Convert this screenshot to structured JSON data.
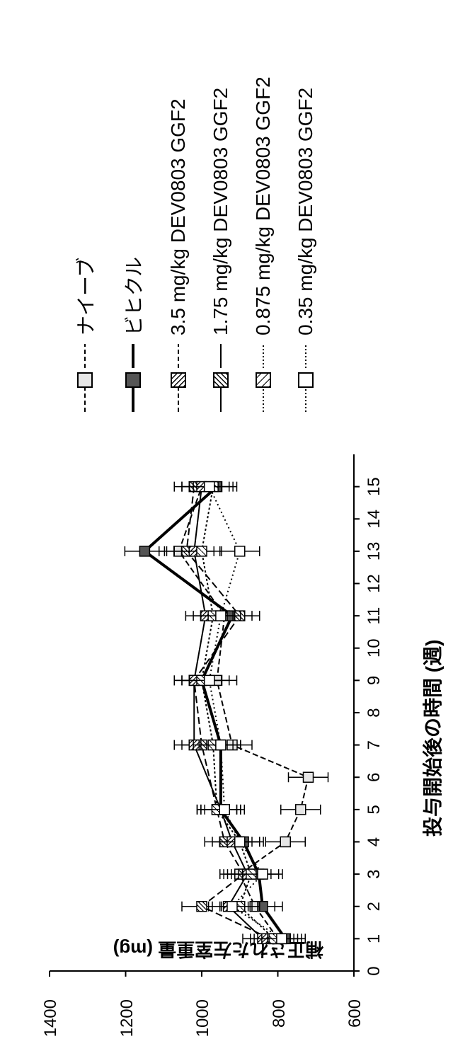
{
  "chart": {
    "type": "line",
    "rotation_deg": -90,
    "y_axis_label": "補正された左室重量 (mg)",
    "x_axis_label": "投与開始後の時間 (週)",
    "xlim": [
      0,
      16
    ],
    "ylim": [
      600,
      1400
    ],
    "xtick_step": 1,
    "xtick_max": 15,
    "ytick_step": 200,
    "background": "#ffffff",
    "axis_color": "#000000",
    "marker_size": 14,
    "line_width": 2,
    "series": [
      {
        "label": "ナイーブ",
        "marker_fill": "#e6e6e6",
        "dash": "8,4",
        "bold": false,
        "x": [
          1,
          2,
          3,
          4,
          5,
          6,
          7,
          9,
          11,
          13,
          15
        ],
        "y": [
          800,
          860,
          900,
          780,
          740,
          720,
          920,
          960,
          940,
          1060,
          1000
        ]
      },
      {
        "label": "ビヒクル",
        "marker_fill": "#555555",
        "dash": "",
        "bold": true,
        "x": [
          1,
          2,
          3,
          4,
          5,
          7,
          9,
          11,
          13,
          15
        ],
        "y": [
          780,
          840,
          850,
          890,
          950,
          950,
          1000,
          920,
          1150,
          960
        ]
      },
      {
        "label": "3.5 mg/kg DEV0803 GGF2",
        "marker_fill": "hatch1",
        "dash": "10,5",
        "bold": false,
        "x": [
          1,
          2,
          3,
          4,
          5,
          7,
          9,
          11,
          13,
          15
        ],
        "y": [
          820,
          1000,
          890,
          940,
          960,
          1000,
          1020,
          900,
          1040,
          1020
        ]
      },
      {
        "label": "1.75 mg/kg DEV0803 GGF2",
        "marker_fill": "hatch2",
        "dash": "",
        "bold": false,
        "x": [
          1,
          2,
          3,
          4,
          5,
          7,
          9,
          11,
          13,
          15
        ],
        "y": [
          840,
          930,
          880,
          920,
          950,
          1020,
          1020,
          990,
          1020,
          1000
        ]
      },
      {
        "label": "0.875 mg/kg DEV0803 GGF2",
        "marker_fill": "hatch3",
        "dash": "3,3",
        "bold": false,
        "x": [
          1,
          2,
          3,
          4,
          5,
          7,
          9,
          11,
          13,
          15
        ],
        "y": [
          810,
          900,
          870,
          900,
          960,
          970,
          1000,
          970,
          1000,
          970
        ]
      },
      {
        "label": "0.35 mg/kg DEV0803 GGF2",
        "marker_fill": "#ffffff",
        "dash": "2,4",
        "bold": false,
        "x": [
          1,
          2,
          3,
          4,
          5,
          7,
          9,
          11,
          13,
          15
        ],
        "y": [
          790,
          920,
          840,
          900,
          940,
          950,
          980,
          950,
          900,
          980
        ]
      }
    ]
  }
}
